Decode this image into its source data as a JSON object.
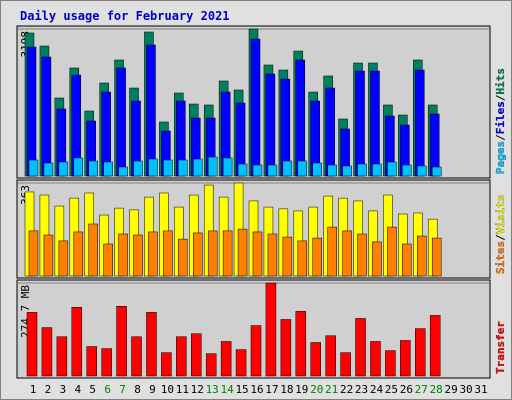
{
  "chart_data": [
    {
      "type": "bar",
      "title": "Daily usage for February 2021",
      "ylim": [
        0,
        3198
      ],
      "yticks": [
        3198
      ],
      "legend_separator": "/",
      "series": [
        {
          "name": "Hits",
          "color": "#008060",
          "values": [
            3111,
            2828,
            1697,
            2350,
            1414,
            2023,
            2524,
            1914,
            3133,
            1175,
            1806,
            1566,
            1545,
            2067,
            1871,
            3198,
            2415,
            2306,
            2719,
            1827,
            2176,
            1240,
            2458,
            2458,
            1545,
            1327,
            2524,
            1545,
            null,
            null,
            null
          ]
        },
        {
          "name": "Files",
          "color": "#0000ff",
          "values": [
            2806,
            2589,
            1458,
            2197,
            1197,
            1827,
            2350,
            1632,
            2850,
            979,
            1632,
            1262,
            1262,
            1827,
            1588,
            2980,
            2219,
            2110,
            2524,
            1632,
            1914,
            1023,
            2284,
            2284,
            1305,
            1110,
            2306,
            1349,
            null,
            null,
            null
          ]
        },
        {
          "name": "Pages",
          "color": "#00c0ff",
          "values": [
            348,
            283,
            305,
            392,
            326,
            305,
            196,
            326,
            370,
            348,
            348,
            370,
            413,
            392,
            261,
            239,
            239,
            326,
            326,
            283,
            239,
            218,
            261,
            261,
            305,
            239,
            218,
            196,
            null,
            null,
            null
          ]
        }
      ]
    },
    {
      "type": "bar",
      "ylim": [
        0,
        363
      ],
      "yticks": [
        363
      ],
      "legend_separator": "/",
      "series": [
        {
          "name": "Visits",
          "color": "#ffff00",
          "values": [
            328,
            316,
            273,
            304,
            324,
            238,
            265,
            258,
            308,
            324,
            269,
            316,
            355,
            308,
            363,
            293,
            269,
            262,
            254,
            269,
            312,
            304,
            293,
            254,
            316,
            242,
            246,
            222,
            null,
            null,
            null
          ]
        },
        {
          "name": "Sites",
          "color": "#ff8000",
          "values": [
            176,
            160,
            137,
            172,
            203,
            125,
            164,
            160,
            172,
            176,
            144,
            168,
            176,
            176,
            183,
            172,
            164,
            152,
            137,
            148,
            191,
            176,
            164,
            133,
            191,
            125,
            156,
            148,
            null,
            null,
            null
          ]
        }
      ]
    },
    {
      "type": "bar",
      "ylim": [
        0,
        274.7
      ],
      "yticks": [
        {
          "value": 274.7,
          "label": "274.7 MB"
        }
      ],
      "categories": [
        "1",
        "2",
        "3",
        "4",
        "5",
        "6",
        "7",
        "8",
        "9",
        "10",
        "11",
        "12",
        "13",
        "14",
        "15",
        "16",
        "17",
        "18",
        "19",
        "20",
        "21",
        "22",
        "23",
        "24",
        "25",
        "26",
        "27",
        "28",
        "29",
        "30",
        "31"
      ],
      "category_colors": [
        "#000000",
        "#000000",
        "#000000",
        "#000000",
        "#000000",
        "#008000",
        "#008000",
        "#000000",
        "#000000",
        "#000000",
        "#000000",
        "#000000",
        "#008000",
        "#008000",
        "#000000",
        "#000000",
        "#000000",
        "#000000",
        "#000000",
        "#008000",
        "#008000",
        "#000000",
        "#000000",
        "#000000",
        "#000000",
        "#000000",
        "#008000",
        "#008000",
        "#000000",
        "#000000",
        "#000000"
      ],
      "series": [
        {
          "name": "Transfer",
          "color": "#ff0000",
          "values": [
            188,
            143,
            116,
            203,
            87,
            81,
            206,
            116,
            188,
            69,
            116,
            125,
            66,
            102,
            78,
            149,
            274.7,
            167,
            191,
            99,
            119,
            69,
            170,
            102,
            75,
            105,
            140,
            179,
            null,
            null,
            null
          ]
        }
      ]
    }
  ]
}
